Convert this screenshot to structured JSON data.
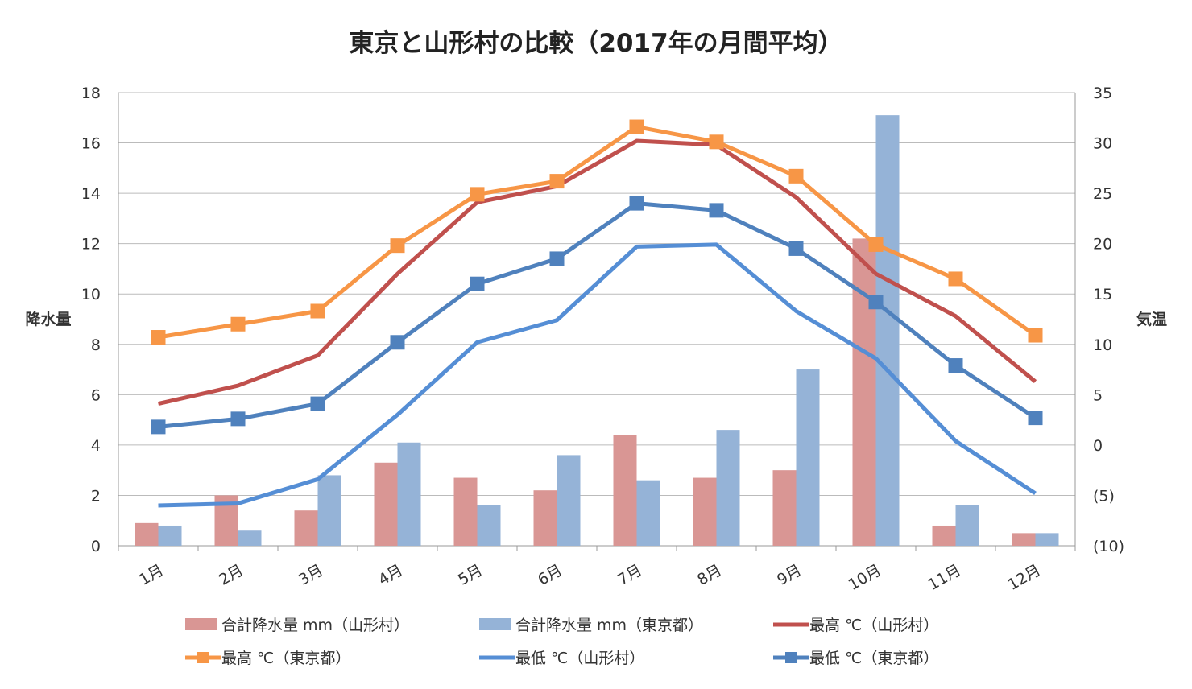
{
  "chart_data": {
    "type": "bar+line",
    "title": "東京と山形村の比較（2017年の月間平均）",
    "ylabel": "降水量",
    "y2label": "気温",
    "ylim": [
      0,
      18
    ],
    "y2lim": [
      -10,
      35
    ],
    "yticks": [
      "0",
      "2",
      "4",
      "6",
      "8",
      "10",
      "12",
      "14",
      "16",
      "18"
    ],
    "y2ticks": [
      "(10)",
      "(5)",
      "0",
      "5",
      "10",
      "15",
      "20",
      "25",
      "30",
      "35"
    ],
    "grid": true,
    "legend_position": "bottom",
    "categories": [
      "1月",
      "2月",
      "3月",
      "4月",
      "5月",
      "6月",
      "7月",
      "8月",
      "9月",
      "10月",
      "11月",
      "12月"
    ],
    "series": [
      {
        "name": "合計降水量 mm（山形村）",
        "kind": "bar",
        "axis": "left",
        "color": "#d99694",
        "values": [
          0.9,
          2.0,
          1.4,
          3.3,
          2.7,
          2.2,
          4.4,
          2.7,
          3.0,
          12.2,
          0.8,
          0.5
        ]
      },
      {
        "name": "合計降水量 mm（東京都）",
        "kind": "bar",
        "axis": "left",
        "color": "#95b3d7",
        "values": [
          0.8,
          0.6,
          2.8,
          4.1,
          1.6,
          3.6,
          2.6,
          4.6,
          7.0,
          17.1,
          1.6,
          0.5
        ]
      },
      {
        "name": "最高 ℃（山形村）",
        "kind": "line",
        "axis": "right",
        "color": "#c0504d",
        "marker": false,
        "values": [
          4.1,
          5.9,
          8.9,
          17.0,
          24.1,
          25.7,
          30.2,
          29.8,
          24.6,
          17.0,
          12.8,
          6.3
        ]
      },
      {
        "name": "最高 ℃（東京都）",
        "kind": "line",
        "axis": "right",
        "color": "#f79646",
        "marker": true,
        "values": [
          10.7,
          12.0,
          13.3,
          19.8,
          24.9,
          26.2,
          31.6,
          30.1,
          26.7,
          19.9,
          16.5,
          10.9
        ]
      },
      {
        "name": "最低 ℃（山形村）",
        "kind": "line",
        "axis": "right",
        "color": "#558ed5",
        "marker": false,
        "values": [
          -6.0,
          -5.8,
          -3.4,
          3.0,
          10.2,
          12.4,
          19.7,
          19.9,
          13.3,
          8.6,
          0.4,
          -4.8
        ]
      },
      {
        "name": "最低 ℃（東京都）",
        "kind": "line",
        "axis": "right",
        "color": "#4f81bd",
        "marker": true,
        "values": [
          1.8,
          2.6,
          4.1,
          10.2,
          16.0,
          18.5,
          24.0,
          23.3,
          19.5,
          14.2,
          7.9,
          2.7
        ]
      }
    ]
  }
}
